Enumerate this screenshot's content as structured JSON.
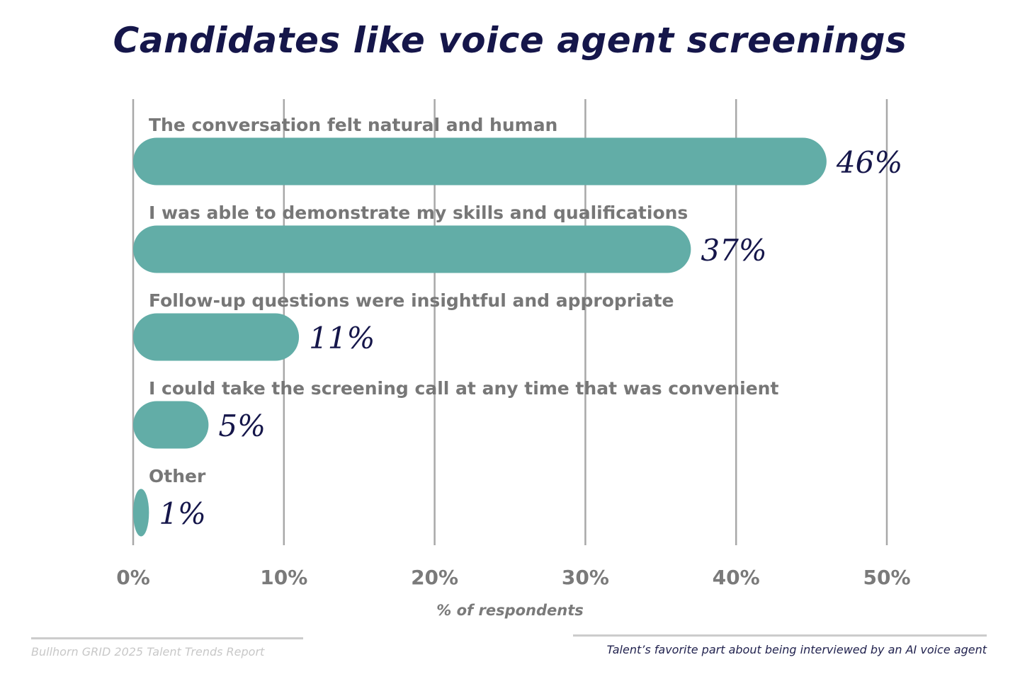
{
  "chart_data": {
    "type": "bar",
    "orientation": "horizontal",
    "title": "Candidates like voice agent screenings",
    "categories": [
      "The conversation felt natural and human",
      "I was able to demonstrate my skills and qualifications",
      "Follow-up questions were insightful and appropriate",
      "I could take the screening call at any time that was convenient",
      "Other"
    ],
    "values": [
      46,
      37,
      11,
      5,
      1
    ],
    "data_labels": [
      "46%",
      "37%",
      "11%",
      "5%",
      "1%"
    ],
    "xlabel": "% of respondents",
    "ylabel": "",
    "xlim": [
      0,
      50
    ],
    "xticks": [
      0,
      10,
      20,
      30,
      40,
      50
    ],
    "xtick_labels": [
      "0%",
      "10%",
      "20%",
      "30%",
      "40%",
      "50%"
    ],
    "grid": true,
    "colors": {
      "bar": "#62ADA7",
      "title": "#15164A",
      "value": "#15164A",
      "grid": "#A8A8A8",
      "category": "#777777"
    }
  },
  "footer": {
    "source": "Bullhorn GRID 2025 Talent Trends Report",
    "caption": "Talent’s favorite part about being interviewed by an AI voice agent"
  }
}
